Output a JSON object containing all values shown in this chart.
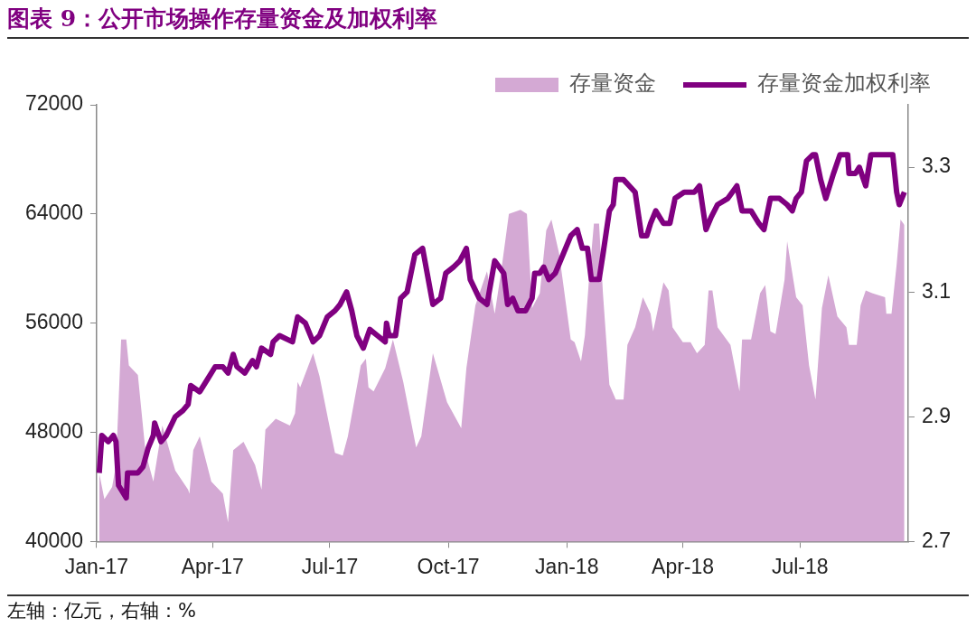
{
  "chart_data": {
    "type": "line",
    "title": "图表 9：公开市场操作存量资金及加权利率",
    "annotations": [
      "左轴：亿元，右轴：%"
    ],
    "xlim": [
      "2017-01-01",
      "2018-09-23"
    ],
    "xticks": [
      {
        "value": "2017-01-01",
        "label": "Jan-17"
      },
      {
        "value": "2017-04-01",
        "label": "Apr-17"
      },
      {
        "value": "2017-07-01",
        "label": "Jul-17"
      },
      {
        "value": "2017-10-01",
        "label": "Oct-17"
      },
      {
        "value": "2018-01-01",
        "label": "Jan-18"
      },
      {
        "value": "2018-04-01",
        "label": "Apr-18"
      },
      {
        "value": "2018-07-01",
        "label": "Jul-18"
      }
    ],
    "ylim": [
      40000,
      72000
    ],
    "yticks": [
      40000,
      48000,
      56000,
      64000,
      72000
    ],
    "y2lim": [
      2.7,
      3.4
    ],
    "y2ticks": [
      2.7,
      2.9,
      3.1,
      3.3
    ],
    "legend": "top right",
    "series": [
      {
        "name": "存量资金",
        "type": "area",
        "color": "#d4a9d4",
        "x": [
          "2017-01-03",
          "2017-01-07",
          "2017-01-13",
          "2017-01-16",
          "2017-01-20",
          "2017-01-24",
          "2017-01-26",
          "2017-02-02",
          "2017-02-08",
          "2017-02-14",
          "2017-02-21",
          "2017-03-03",
          "2017-03-13",
          "2017-03-14",
          "2017-03-17",
          "2017-03-22",
          "2017-03-31",
          "2017-04-09",
          "2017-04-13",
          "2017-04-17",
          "2017-04-25",
          "2017-05-04",
          "2017-05-09",
          "2017-05-12",
          "2017-05-20",
          "2017-05-31",
          "2017-06-04",
          "2017-06-06",
          "2017-06-08",
          "2017-06-18",
          "2017-06-23",
          "2017-06-30",
          "2017-07-05",
          "2017-07-11",
          "2017-07-15",
          "2017-07-25",
          "2017-07-29",
          "2017-07-31",
          "2017-08-04",
          "2017-08-13",
          "2017-08-19",
          "2017-08-27",
          "2017-09-06",
          "2017-09-10",
          "2017-09-19",
          "2017-09-30",
          "2017-10-11",
          "2017-10-15",
          "2017-10-22",
          "2017-10-31",
          "2017-11-06",
          "2017-11-11",
          "2017-11-17",
          "2017-11-26",
          "2017-12-01",
          "2017-12-05",
          "2017-12-11",
          "2017-12-16",
          "2017-12-20",
          "2017-12-26",
          "2018-01-04",
          "2018-01-07",
          "2018-01-12",
          "2018-01-15",
          "2018-01-18",
          "2018-01-22",
          "2018-01-26",
          "2018-01-29",
          "2018-02-03",
          "2018-02-08",
          "2018-02-14",
          "2018-02-17",
          "2018-02-23",
          "2018-03-01",
          "2018-03-07",
          "2018-03-09",
          "2018-03-17",
          "2018-03-21",
          "2018-03-24",
          "2018-04-01",
          "2018-04-07",
          "2018-04-12",
          "2018-04-18",
          "2018-04-21",
          "2018-04-24",
          "2018-04-28",
          "2018-05-08",
          "2018-05-15",
          "2018-05-17",
          "2018-05-24",
          "2018-05-31",
          "2018-06-04",
          "2018-06-08",
          "2018-06-12",
          "2018-06-19",
          "2018-06-21",
          "2018-06-28",
          "2018-07-03",
          "2018-07-08",
          "2018-07-13",
          "2018-07-18",
          "2018-07-23",
          "2018-07-30",
          "2018-08-06",
          "2018-08-08",
          "2018-08-14",
          "2018-08-17",
          "2018-08-21",
          "2018-08-26",
          "2018-09-05",
          "2018-09-06",
          "2018-09-10",
          "2018-09-14",
          "2018-09-17",
          "2018-09-20"
        ],
        "values": [
          45000,
          43100,
          44000,
          45600,
          54800,
          54800,
          52900,
          52200,
          46500,
          44400,
          48500,
          45200,
          43800,
          43500,
          46700,
          47700,
          44400,
          43500,
          41400,
          46700,
          47300,
          45600,
          43800,
          48200,
          49000,
          48500,
          49400,
          51700,
          51300,
          53800,
          52100,
          48800,
          46500,
          46300,
          47700,
          52900,
          53400,
          51300,
          51000,
          52700,
          54800,
          51700,
          46900,
          47700,
          53800,
          50200,
          48300,
          52700,
          57300,
          59800,
          56700,
          59800,
          64000,
          64300,
          64000,
          57100,
          58200,
          62800,
          63600,
          61100,
          54800,
          54600,
          53200,
          55100,
          59000,
          63300,
          63300,
          58200,
          51500,
          50400,
          50400,
          54400,
          55700,
          57900,
          56700,
          55400,
          59000,
          58400,
          55700,
          54600,
          54600,
          53800,
          54400,
          58400,
          58400,
          55700,
          54400,
          51000,
          54800,
          54800,
          58200,
          58800,
          55400,
          55200,
          59200,
          62000,
          57900,
          57300,
          52900,
          50400,
          57100,
          59500,
          56500,
          55700,
          54400,
          54400,
          57300,
          58400,
          58200,
          57900,
          56700,
          56700,
          60300,
          63600,
          63200
        ]
      },
      {
        "name": "存量资金加权利率",
        "type": "line",
        "axis": "y2",
        "color": "#800080",
        "x": [
          "2017-01-03",
          "2017-01-05",
          "2017-01-10",
          "2017-01-14",
          "2017-01-16",
          "2017-01-18",
          "2017-01-24",
          "2017-01-25",
          "2017-02-02",
          "2017-02-06",
          "2017-02-10",
          "2017-02-14",
          "2017-02-15",
          "2017-02-20",
          "2017-02-24",
          "2017-03-03",
          "2017-03-09",
          "2017-03-13",
          "2017-03-15",
          "2017-03-22",
          "2017-03-28",
          "2017-04-03",
          "2017-04-09",
          "2017-04-13",
          "2017-04-17",
          "2017-04-20",
          "2017-04-26",
          "2017-05-02",
          "2017-05-05",
          "2017-05-09",
          "2017-05-16",
          "2017-05-18",
          "2017-05-23",
          "2017-06-02",
          "2017-06-06",
          "2017-06-12",
          "2017-06-18",
          "2017-06-23",
          "2017-06-29",
          "2017-07-05",
          "2017-07-09",
          "2017-07-14",
          "2017-07-18",
          "2017-07-22",
          "2017-07-27",
          "2017-08-01",
          "2017-08-07",
          "2017-08-13",
          "2017-08-14",
          "2017-08-16",
          "2017-08-21",
          "2017-08-25",
          "2017-08-30",
          "2017-09-05",
          "2017-09-11",
          "2017-09-19",
          "2017-09-25",
          "2017-09-29",
          "2017-10-05",
          "2017-10-10",
          "2017-10-15",
          "2017-10-18",
          "2017-10-25",
          "2017-10-31",
          "2017-11-06",
          "2017-11-13",
          "2017-11-16",
          "2017-11-20",
          "2017-11-24",
          "2017-11-30",
          "2017-12-05",
          "2017-12-07",
          "2017-12-11",
          "2017-12-14",
          "2017-12-18",
          "2017-12-23",
          "2017-12-29",
          "2018-01-04",
          "2018-01-09",
          "2018-01-13",
          "2018-01-17",
          "2018-01-20",
          "2018-01-26",
          "2018-01-29",
          "2018-02-03",
          "2018-02-06",
          "2018-02-08",
          "2018-02-14",
          "2018-02-23",
          "2018-02-28",
          "2018-03-04",
          "2018-03-07",
          "2018-03-11",
          "2018-03-17",
          "2018-03-22",
          "2018-03-26",
          "2018-04-02",
          "2018-04-10",
          "2018-04-14",
          "2018-04-19",
          "2018-04-23",
          "2018-04-28",
          "2018-05-06",
          "2018-05-13",
          "2018-05-17",
          "2018-05-24",
          "2018-05-30",
          "2018-06-03",
          "2018-06-08",
          "2018-06-15",
          "2018-06-21",
          "2018-06-25",
          "2018-06-28",
          "2018-07-02",
          "2018-07-06",
          "2018-07-11",
          "2018-07-13",
          "2018-07-17",
          "2018-07-21",
          "2018-07-27",
          "2018-08-01",
          "2018-08-07",
          "2018-08-08",
          "2018-08-13",
          "2018-08-16",
          "2018-08-21",
          "2018-08-25",
          "2018-09-05",
          "2018-09-08",
          "2018-09-11",
          "2018-09-14",
          "2018-09-16",
          "2018-09-20"
        ],
        "values": [
          2.81,
          2.87,
          2.86,
          2.87,
          2.86,
          2.79,
          2.77,
          2.81,
          2.81,
          2.82,
          2.85,
          2.87,
          2.89,
          2.86,
          2.87,
          2.9,
          2.91,
          2.92,
          2.95,
          2.94,
          2.96,
          2.98,
          2.98,
          2.97,
          3.0,
          2.98,
          2.97,
          2.99,
          2.98,
          3.01,
          3.0,
          3.02,
          3.03,
          3.02,
          3.06,
          3.05,
          3.02,
          3.03,
          3.06,
          3.07,
          3.08,
          3.1,
          3.07,
          3.03,
          3.01,
          3.04,
          3.03,
          3.02,
          3.05,
          3.03,
          3.03,
          3.09,
          3.1,
          3.16,
          3.17,
          3.08,
          3.09,
          3.13,
          3.14,
          3.15,
          3.17,
          3.12,
          3.09,
          3.08,
          3.15,
          3.13,
          3.08,
          3.09,
          3.07,
          3.07,
          3.09,
          3.13,
          3.13,
          3.14,
          3.12,
          3.13,
          3.16,
          3.19,
          3.2,
          3.17,
          3.17,
          3.12,
          3.12,
          3.16,
          3.23,
          3.24,
          3.28,
          3.28,
          3.26,
          3.19,
          3.19,
          3.21,
          3.23,
          3.21,
          3.21,
          3.25,
          3.26,
          3.26,
          3.27,
          3.2,
          3.22,
          3.24,
          3.25,
          3.27,
          3.23,
          3.23,
          3.21,
          3.2,
          3.25,
          3.25,
          3.24,
          3.23,
          3.25,
          3.26,
          3.31,
          3.32,
          3.32,
          3.28,
          3.25,
          3.29,
          3.32,
          3.32,
          3.29,
          3.29,
          3.3,
          3.27,
          3.32,
          3.32,
          3.32,
          3.32,
          3.26,
          3.24,
          3.26
        ]
      }
    ]
  }
}
